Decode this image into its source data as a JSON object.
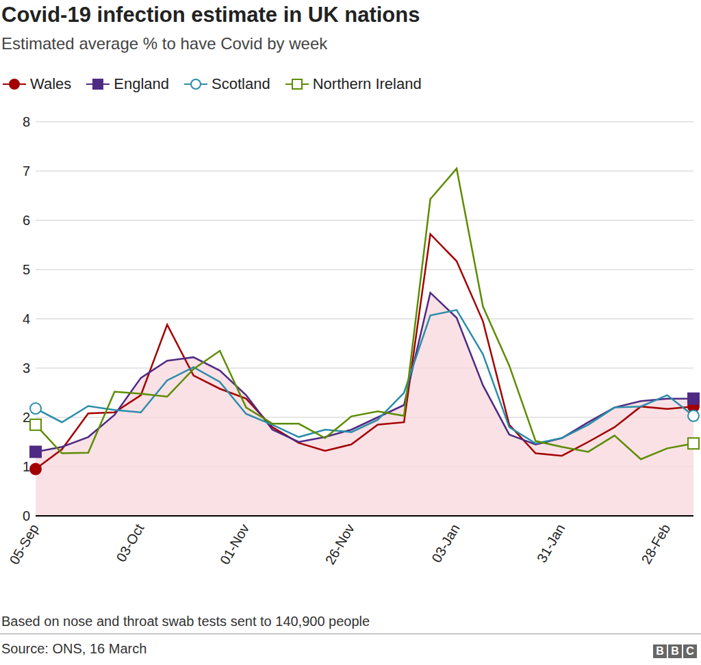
{
  "chart_data": {
    "type": "line",
    "title": "Covid-19 infection estimate in UK nations",
    "subtitle": "Estimated average % to have Covid by week",
    "note": "Based on nose and throat swab tests sent to 140,900 people",
    "source": "Source: ONS, 16 March",
    "logo": "BBC",
    "categories": [
      "05-Sep",
      null,
      null,
      null,
      "03-Oct",
      null,
      null,
      null,
      "01-Nov",
      null,
      null,
      null,
      "26-Nov",
      null,
      null,
      null,
      "03-Jan",
      null,
      null,
      null,
      "31-Jan",
      null,
      null,
      null,
      "28-Feb",
      null
    ],
    "series": [
      {
        "name": "Wales",
        "color": "#a30000",
        "marker": "circle",
        "values": [
          0.95,
          1.35,
          2.08,
          2.1,
          2.45,
          3.88,
          2.85,
          2.58,
          2.38,
          1.8,
          1.48,
          1.32,
          1.45,
          1.85,
          1.9,
          5.72,
          5.17,
          3.95,
          1.85,
          1.27,
          1.22,
          1.5,
          1.8,
          2.22,
          2.17,
          2.22
        ]
      },
      {
        "name": "England",
        "color": "#4e2a84",
        "marker": "square",
        "type": "area",
        "values": [
          1.3,
          1.4,
          1.6,
          2.05,
          2.8,
          3.15,
          3.22,
          2.95,
          2.45,
          1.75,
          1.5,
          1.6,
          1.75,
          2.0,
          2.25,
          4.53,
          4.02,
          2.65,
          1.65,
          1.45,
          1.58,
          1.9,
          2.2,
          2.33,
          2.38,
          2.38
        ]
      },
      {
        "name": "Scotland",
        "color": "#2b8cab",
        "marker": "open_circle",
        "values": [
          2.18,
          1.9,
          2.23,
          2.15,
          2.1,
          2.75,
          3.02,
          2.72,
          2.07,
          1.85,
          1.6,
          1.75,
          1.7,
          1.95,
          2.5,
          4.07,
          4.18,
          3.28,
          1.8,
          1.47,
          1.58,
          1.85,
          2.2,
          2.22,
          2.45,
          2.03
        ]
      },
      {
        "name": "Northern Ireland",
        "color": "#5c8c00",
        "marker": "open_square",
        "values": [
          1.85,
          1.27,
          1.28,
          2.52,
          2.48,
          2.42,
          2.98,
          3.35,
          2.2,
          1.87,
          1.87,
          1.58,
          2.02,
          2.12,
          2.03,
          6.43,
          7.05,
          4.25,
          3.05,
          1.52,
          1.4,
          1.3,
          1.63,
          1.15,
          1.37,
          1.47
        ]
      }
    ],
    "ylim": [
      0,
      8
    ],
    "yticks": [
      0,
      1,
      2,
      3,
      4,
      5,
      6,
      7,
      8
    ],
    "grid": true,
    "legend": "top-left"
  }
}
